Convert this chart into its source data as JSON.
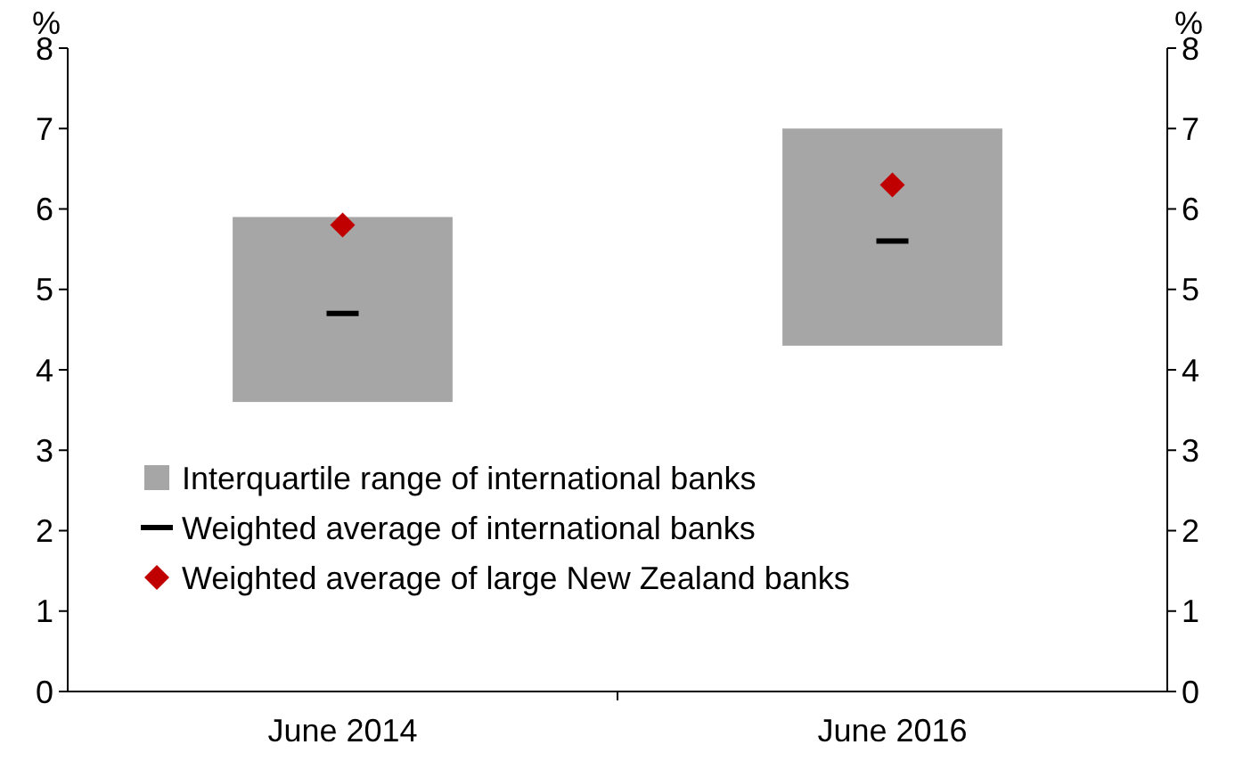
{
  "chart_data": {
    "type": "bar",
    "categories": [
      "June 2014",
      "June 2016"
    ],
    "ylabel": "%",
    "y2label": "%",
    "ylim": [
      0,
      8
    ],
    "yticks": [
      0,
      1,
      2,
      3,
      4,
      5,
      6,
      7,
      8
    ],
    "y2lim": [
      0,
      8
    ],
    "y2ticks": [
      0,
      1,
      2,
      3,
      4,
      5,
      6,
      7,
      8
    ],
    "legend": "bottom left",
    "grid": false,
    "series": [
      {
        "name": "Interquartile range of international banks",
        "color": "#a6a6a6",
        "base": [
          3.6,
          4.3
        ],
        "values": [
          2.3,
          2.7
        ]
      },
      {
        "name": "Weighted average of international banks",
        "type": "scatter",
        "color": "#000000",
        "values": [
          4.7,
          5.6
        ]
      },
      {
        "name": "Weighted average of large New Zealand banks",
        "type": "scatter",
        "marker": "diamond",
        "color": "#c00000",
        "values": [
          5.8,
          6.3
        ]
      }
    ]
  }
}
